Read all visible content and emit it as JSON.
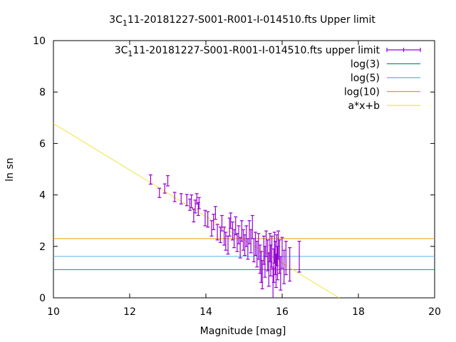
{
  "chart_data": {
    "type": "scatter",
    "title": {
      "pre": "3C",
      "sub": "1",
      "post": "11-20181227-S001-R001-I-014510.fts Upper limit"
    },
    "xlabel": "Magnitude [mag]",
    "ylabel": "ln sn",
    "xlim": [
      10,
      20
    ],
    "ylim": [
      0,
      10
    ],
    "xticks": [
      "10",
      "12",
      "14",
      "16",
      "18",
      "20"
    ],
    "yticks": [
      "0",
      "2",
      "4",
      "6",
      "8",
      "10"
    ],
    "legend_position": "top-right",
    "grid": false,
    "series": [
      {
        "name": {
          "pre": "3C",
          "sub": "1",
          "post": "11-20181227-S001-R001-I-014510.fts upper limit"
        },
        "kind": "errorbars",
        "color": "#9400d3",
        "points": [
          {
            "x": 12.55,
            "y": 4.6,
            "err": 0.18
          },
          {
            "x": 12.78,
            "y": 4.08,
            "err": 0.18
          },
          {
            "x": 12.92,
            "y": 4.25,
            "err": 0.18
          },
          {
            "x": 13.0,
            "y": 4.55,
            "err": 0.2
          },
          {
            "x": 13.18,
            "y": 3.92,
            "err": 0.18
          },
          {
            "x": 13.35,
            "y": 3.85,
            "err": 0.2
          },
          {
            "x": 13.5,
            "y": 3.8,
            "err": 0.22
          },
          {
            "x": 13.58,
            "y": 3.62,
            "err": 0.22
          },
          {
            "x": 13.62,
            "y": 3.75,
            "err": 0.25
          },
          {
            "x": 13.68,
            "y": 3.2,
            "err": 0.25
          },
          {
            "x": 13.72,
            "y": 3.55,
            "err": 0.25
          },
          {
            "x": 13.76,
            "y": 3.85,
            "err": 0.2
          },
          {
            "x": 13.8,
            "y": 3.45,
            "err": 0.25
          },
          {
            "x": 13.82,
            "y": 3.68,
            "err": 0.22
          },
          {
            "x": 13.98,
            "y": 3.1,
            "err": 0.3
          },
          {
            "x": 14.05,
            "y": 3.05,
            "err": 0.3
          },
          {
            "x": 14.15,
            "y": 2.7,
            "err": 0.3
          },
          {
            "x": 14.2,
            "y": 2.95,
            "err": 0.3
          },
          {
            "x": 14.25,
            "y": 3.3,
            "err": 0.25
          },
          {
            "x": 14.3,
            "y": 2.55,
            "err": 0.3
          },
          {
            "x": 14.38,
            "y": 2.45,
            "err": 0.3
          },
          {
            "x": 14.42,
            "y": 2.9,
            "err": 0.3
          },
          {
            "x": 14.48,
            "y": 2.4,
            "err": 0.35
          },
          {
            "x": 14.52,
            "y": 2.2,
            "err": 0.35
          },
          {
            "x": 14.58,
            "y": 2.05,
            "err": 0.35
          },
          {
            "x": 14.62,
            "y": 2.75,
            "err": 0.35
          },
          {
            "x": 14.65,
            "y": 3.0,
            "err": 0.3
          },
          {
            "x": 14.7,
            "y": 2.6,
            "err": 0.35
          },
          {
            "x": 14.74,
            "y": 2.3,
            "err": 0.35
          },
          {
            "x": 14.78,
            "y": 2.8,
            "err": 0.35
          },
          {
            "x": 14.82,
            "y": 2.15,
            "err": 0.35
          },
          {
            "x": 14.86,
            "y": 2.45,
            "err": 0.35
          },
          {
            "x": 14.9,
            "y": 1.95,
            "err": 0.4
          },
          {
            "x": 14.94,
            "y": 2.6,
            "err": 0.4
          },
          {
            "x": 14.98,
            "y": 2.25,
            "err": 0.4
          },
          {
            "x": 15.02,
            "y": 2.05,
            "err": 0.4
          },
          {
            "x": 15.06,
            "y": 2.4,
            "err": 0.4
          },
          {
            "x": 15.1,
            "y": 1.9,
            "err": 0.4
          },
          {
            "x": 15.14,
            "y": 2.55,
            "err": 0.45
          },
          {
            "x": 15.18,
            "y": 2.2,
            "err": 0.45
          },
          {
            "x": 15.22,
            "y": 2.75,
            "err": 0.45
          },
          {
            "x": 15.26,
            "y": 1.85,
            "err": 0.45
          },
          {
            "x": 15.3,
            "y": 2.1,
            "err": 0.45
          },
          {
            "x": 15.34,
            "y": 1.7,
            "err": 0.5
          },
          {
            "x": 15.38,
            "y": 2.0,
            "err": 0.5
          },
          {
            "x": 15.42,
            "y": 1.5,
            "err": 0.55
          },
          {
            "x": 15.45,
            "y": 1.2,
            "err": 0.6
          },
          {
            "x": 15.48,
            "y": 0.9,
            "err": 0.55
          },
          {
            "x": 15.52,
            "y": 1.85,
            "err": 0.55
          },
          {
            "x": 15.55,
            "y": 1.4,
            "err": 0.6
          },
          {
            "x": 15.58,
            "y": 2.1,
            "err": 0.5
          },
          {
            "x": 15.62,
            "y": 1.65,
            "err": 0.6
          },
          {
            "x": 15.65,
            "y": 1.1,
            "err": 0.65
          },
          {
            "x": 15.68,
            "y": 1.95,
            "err": 0.55
          },
          {
            "x": 15.7,
            "y": 1.45,
            "err": 0.6
          },
          {
            "x": 15.73,
            "y": 1.8,
            "err": 0.6
          },
          {
            "x": 15.76,
            "y": 0.55,
            "err": 0.6
          },
          {
            "x": 15.78,
            "y": 1.25,
            "err": 0.65
          },
          {
            "x": 15.8,
            "y": 1.95,
            "err": 0.6
          },
          {
            "x": 15.82,
            "y": 1.55,
            "err": 0.65
          },
          {
            "x": 15.84,
            "y": 1.05,
            "err": 0.65
          },
          {
            "x": 15.86,
            "y": 1.85,
            "err": 0.6
          },
          {
            "x": 15.88,
            "y": 1.35,
            "err": 0.65
          },
          {
            "x": 15.9,
            "y": 2.05,
            "err": 0.55
          },
          {
            "x": 15.93,
            "y": 1.6,
            "err": 0.65
          },
          {
            "x": 15.96,
            "y": 0.95,
            "err": 0.65
          },
          {
            "x": 16.0,
            "y": 1.75,
            "err": 0.6
          },
          {
            "x": 16.05,
            "y": 1.2,
            "err": 0.65
          },
          {
            "x": 16.1,
            "y": 1.55,
            "err": 0.65
          },
          {
            "x": 16.2,
            "y": 1.3,
            "err": 0.65
          },
          {
            "x": 16.45,
            "y": 1.6,
            "err": 0.6
          }
        ]
      },
      {
        "name": "log(3)",
        "kind": "hline",
        "y": 1.0986,
        "color": "#009e73"
      },
      {
        "name": "log(5)",
        "kind": "hline",
        "y": 1.6094,
        "color": "#56b4e9"
      },
      {
        "name": "log(10)",
        "kind": "hline",
        "y": 2.3026,
        "color": "#e69f00"
      },
      {
        "name": "a*x+b",
        "kind": "fit",
        "slope": -0.905,
        "intercept": 15.83,
        "color": "#f0e442"
      }
    ]
  }
}
